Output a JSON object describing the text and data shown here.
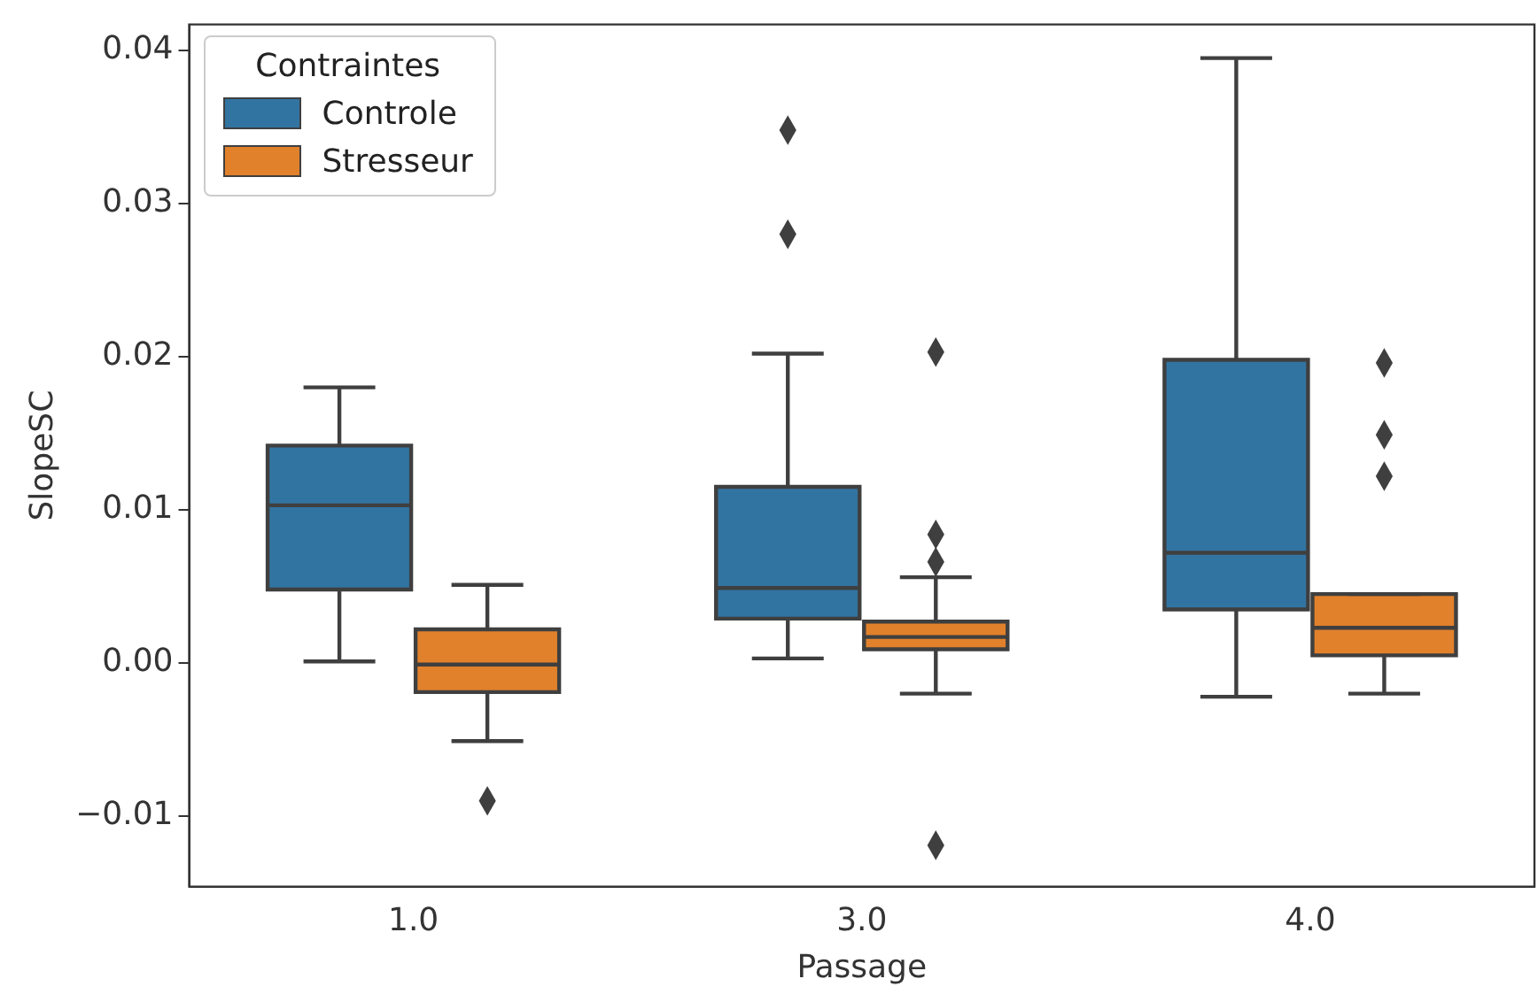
{
  "chart_data": {
    "type": "box",
    "xlabel": "Passage",
    "ylabel": "SlopeSC",
    "legend_title": "Contraintes",
    "legend": "top left",
    "grid": false,
    "marker": "diamond",
    "categories": [
      "1.0",
      "3.0",
      "4.0"
    ],
    "ylim": [
      -0.0146,
      0.0417
    ],
    "yticks": [
      {
        "value": -0.01,
        "label": "−0.01"
      },
      {
        "value": 0,
        "label": "0.00"
      },
      0.01,
      0.02,
      0.03,
      0.04
    ],
    "series": [
      {
        "name": "Controle",
        "color": "#3274a1",
        "boxes": [
          {
            "low": 0.0001,
            "q1": 0.0048,
            "median": 0.0103,
            "q3": 0.0142,
            "high": 0.018
          },
          {
            "low": 0.0003,
            "q1": 0.0029,
            "median": 0.0049,
            "q3": 0.0115,
            "high": 0.0202,
            "outliers": [
              0.0348,
              0.028
            ]
          },
          {
            "low": -0.0022,
            "q1": 0.0035,
            "median": 0.0072,
            "q3": 0.0198,
            "high": 0.0395
          }
        ]
      },
      {
        "name": "Stresseur",
        "color": "#e1812c",
        "boxes": [
          {
            "low": -0.0051,
            "q1": -0.0019,
            "median": -0.0001,
            "q3": 0.0022,
            "high": 0.0051,
            "outliers": [
              -0.009
            ]
          },
          {
            "low": -0.002,
            "q1": 0.0009,
            "median": 0.0017,
            "q3": 0.0027,
            "high": 0.0056,
            "outliers": [
              0.0203,
              0.0084,
              0.0066,
              -0.0119
            ]
          },
          {
            "low": -0.002,
            "q1": 0.0005,
            "median": 0.0023,
            "q3": 0.0045,
            "high": 0.0045,
            "outliers": [
              0.0196,
              0.0149,
              0.0122
            ]
          }
        ]
      }
    ]
  }
}
